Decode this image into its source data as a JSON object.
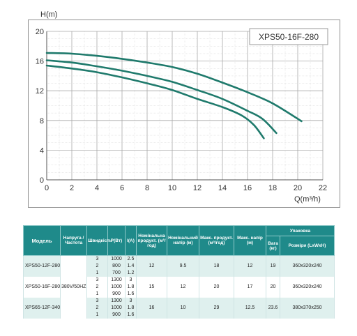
{
  "chart_data": {
    "type": "line",
    "title": "XPS50-16F-280",
    "ylabel": "H(m)",
    "xlabel": "Q(m³/h)",
    "xlim": [
      0,
      22
    ],
    "ylim": [
      0,
      20
    ],
    "xticks": [
      0,
      2,
      4,
      6,
      8,
      10,
      12,
      14,
      16,
      18,
      20,
      22
    ],
    "yticks": [
      0,
      4,
      8,
      12,
      16,
      20
    ],
    "grid": true,
    "line_color": "#1f7a6c",
    "series": [
      {
        "points": [
          [
            0,
            17.1
          ],
          [
            2,
            17.0
          ],
          [
            4,
            16.7
          ],
          [
            6,
            16.3
          ],
          [
            8,
            15.8
          ],
          [
            10,
            15.2
          ],
          [
            12,
            14.3
          ],
          [
            14,
            13.1
          ],
          [
            16,
            11.8
          ],
          [
            18,
            10.3
          ],
          [
            20.3,
            7.9
          ]
        ]
      },
      {
        "points": [
          [
            0,
            16.1
          ],
          [
            2,
            15.8
          ],
          [
            4,
            15.3
          ],
          [
            6,
            14.7
          ],
          [
            8,
            14.0
          ],
          [
            10,
            13.2
          ],
          [
            12,
            12.1
          ],
          [
            14,
            10.9
          ],
          [
            16,
            9.3
          ],
          [
            17.2,
            8.2
          ],
          [
            18.3,
            6.3
          ]
        ]
      },
      {
        "points": [
          [
            0,
            15.4
          ],
          [
            2,
            15.0
          ],
          [
            4,
            14.5
          ],
          [
            6,
            13.8
          ],
          [
            8,
            13.0
          ],
          [
            10,
            12.1
          ],
          [
            12,
            10.9
          ],
          [
            14,
            9.8
          ],
          [
            15.5,
            8.7
          ],
          [
            16.5,
            7.4
          ],
          [
            17.3,
            5.6
          ]
        ]
      }
    ]
  },
  "table": {
    "headers": {
      "model": "Модель",
      "voltage": "Напруга /Частота",
      "speed": "Швидкість",
      "power": "P(Вт)",
      "current": "I(A)",
      "nominal_flow": "Номінальна продукт. (м³/год)",
      "nominal_head": "Номінальний напір (м)",
      "max_flow": "Макс. продукт. (м³/год)",
      "max_head": "Макс. напір (м)",
      "packing": "Упаковка",
      "weight": "Вага (кг)",
      "dimensions": "Розміри (LxWxH)"
    },
    "voltage_value": "380V/50HZ",
    "rows": [
      {
        "model": "XPS50-12F-280",
        "speeds": [
          {
            "speed": "3",
            "power": "1000",
            "current": "2.5"
          },
          {
            "speed": "2",
            "power": "800",
            "current": "1.4"
          },
          {
            "speed": "1",
            "power": "700",
            "current": "1.2"
          }
        ],
        "nominal_flow": "12",
        "nominal_head": "9.5",
        "max_flow": "18",
        "max_head": "12",
        "weight": "19",
        "dimensions": "360x320x240"
      },
      {
        "model": "XPS50-16F-280",
        "speeds": [
          {
            "speed": "3",
            "power": "1300",
            "current": "3"
          },
          {
            "speed": "2",
            "power": "1000",
            "current": "1.8"
          },
          {
            "speed": "1",
            "power": "900",
            "current": "1.6"
          }
        ],
        "nominal_flow": "15",
        "nominal_head": "12",
        "max_flow": "20",
        "max_head": "17",
        "weight": "20",
        "dimensions": "360x320x240"
      },
      {
        "model": "XPS65-12F-340",
        "speeds": [
          {
            "speed": "3",
            "power": "1300",
            "current": "3"
          },
          {
            "speed": "2",
            "power": "1000",
            "current": "1.8"
          },
          {
            "speed": "1",
            "power": "900",
            "current": "1.6"
          }
        ],
        "nominal_flow": "16",
        "nominal_head": "10",
        "max_flow": "29",
        "max_head": "12.5",
        "weight": "23.6",
        "dimensions": "380x370x250"
      }
    ]
  }
}
